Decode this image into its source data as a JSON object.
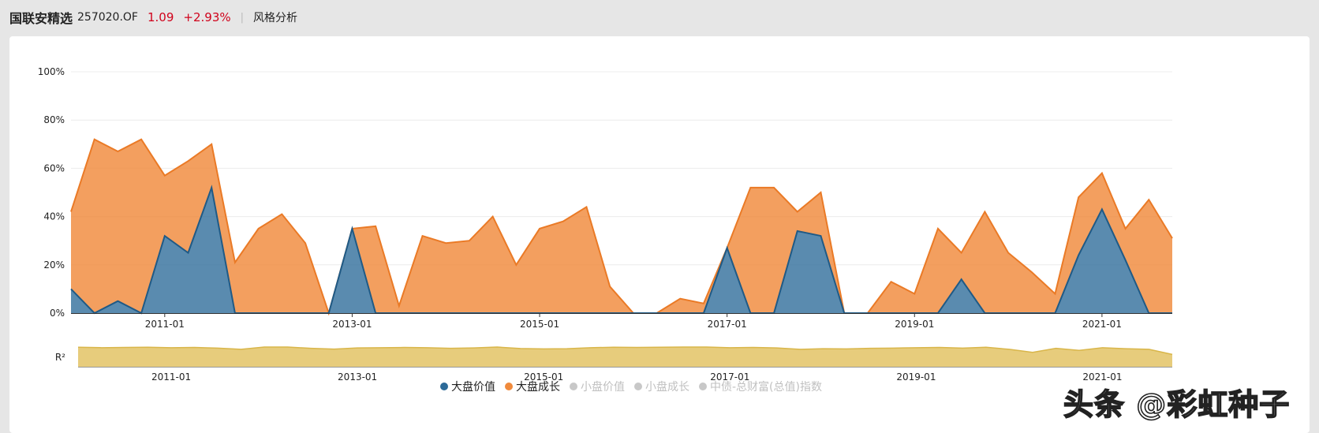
{
  "header": {
    "fund_name": "国联安精选",
    "fund_code": "257020.OF",
    "nav": "1.09",
    "change": "+2.93%",
    "separator": "|",
    "tab_label": "风格分析"
  },
  "colors": {
    "large_value": "#2c6a98",
    "large_growth": "#f08a3c",
    "r2": "#e3c365",
    "disabled": "#c8c8c8"
  },
  "chart_data": {
    "type": "area",
    "stacked": true,
    "title": "",
    "ylim": [
      0,
      100
    ],
    "y_ticks": [
      "0%",
      "20%",
      "40%",
      "60%",
      "80%",
      "100%"
    ],
    "x_ticks": [
      "2011-01",
      "2013-01",
      "2015-01",
      "2017-01",
      "2019-01",
      "2021-01"
    ],
    "x_range": [
      2010.0,
      2021.75
    ],
    "x_tick_positions": [
      2011,
      2013,
      2015,
      2017,
      2019,
      2021
    ],
    "x": [
      2010.0,
      2010.25,
      2010.5,
      2010.75,
      2011.0,
      2011.25,
      2011.5,
      2011.75,
      2012.0,
      2012.25,
      2012.5,
      2012.75,
      2013.0,
      2013.25,
      2013.5,
      2013.75,
      2014.0,
      2014.25,
      2014.5,
      2014.75,
      2015.0,
      2015.25,
      2015.5,
      2015.75,
      2016.0,
      2016.25,
      2016.5,
      2016.75,
      2017.0,
      2017.25,
      2017.5,
      2017.75,
      2018.0,
      2018.25,
      2018.5,
      2018.75,
      2019.0,
      2019.25,
      2019.5,
      2019.75,
      2020.0,
      2020.25,
      2020.5,
      2020.75,
      2021.0,
      2021.25,
      2021.5,
      2021.75
    ],
    "series": [
      {
        "name": "大盘价值",
        "values": [
          10,
          0,
          5,
          0,
          32,
          25,
          52,
          0,
          0,
          0,
          0,
          0,
          35,
          0,
          0,
          0,
          0,
          0,
          0,
          0,
          0,
          0,
          0,
          0,
          0,
          0,
          0,
          0,
          27,
          0,
          0,
          34,
          32,
          0,
          0,
          0,
          0,
          0,
          14,
          0,
          0,
          0,
          0,
          24,
          43,
          22,
          0,
          0
        ]
      },
      {
        "name": "大盘成长",
        "values": [
          32,
          72,
          62,
          72,
          25,
          38,
          18,
          21,
          35,
          41,
          29,
          0,
          0,
          36,
          3,
          32,
          29,
          30,
          40,
          20,
          35,
          38,
          44,
          11,
          0,
          0,
          6,
          4,
          0,
          52,
          52,
          8,
          18,
          0,
          0,
          13,
          8,
          35,
          11,
          42,
          25,
          17,
          8,
          24,
          15,
          13,
          47,
          31
        ]
      }
    ],
    "legend": [
      {
        "name": "大盘价值",
        "active": true
      },
      {
        "name": "大盘成长",
        "active": true
      },
      {
        "name": "小盘价值",
        "active": false
      },
      {
        "name": "小盘成长",
        "active": false
      },
      {
        "name": "中债-总财富(总值)指数",
        "active": false
      }
    ],
    "r2": {
      "label": "R²",
      "values": [
        0.95,
        0.93,
        0.94,
        0.95,
        0.93,
        0.94,
        0.91,
        0.85,
        0.96,
        0.96,
        0.9,
        0.86,
        0.92,
        0.93,
        0.94,
        0.93,
        0.9,
        0.92,
        0.96,
        0.89,
        0.87,
        0.88,
        0.93,
        0.95,
        0.94,
        0.95,
        0.96,
        0.96,
        0.93,
        0.94,
        0.92,
        0.85,
        0.88,
        0.87,
        0.9,
        0.91,
        0.93,
        0.94,
        0.91,
        0.95,
        0.85,
        0.7,
        0.9,
        0.8,
        0.93,
        0.88,
        0.85,
        0.6
      ]
    }
  },
  "watermark": "头条 @彩虹种子"
}
